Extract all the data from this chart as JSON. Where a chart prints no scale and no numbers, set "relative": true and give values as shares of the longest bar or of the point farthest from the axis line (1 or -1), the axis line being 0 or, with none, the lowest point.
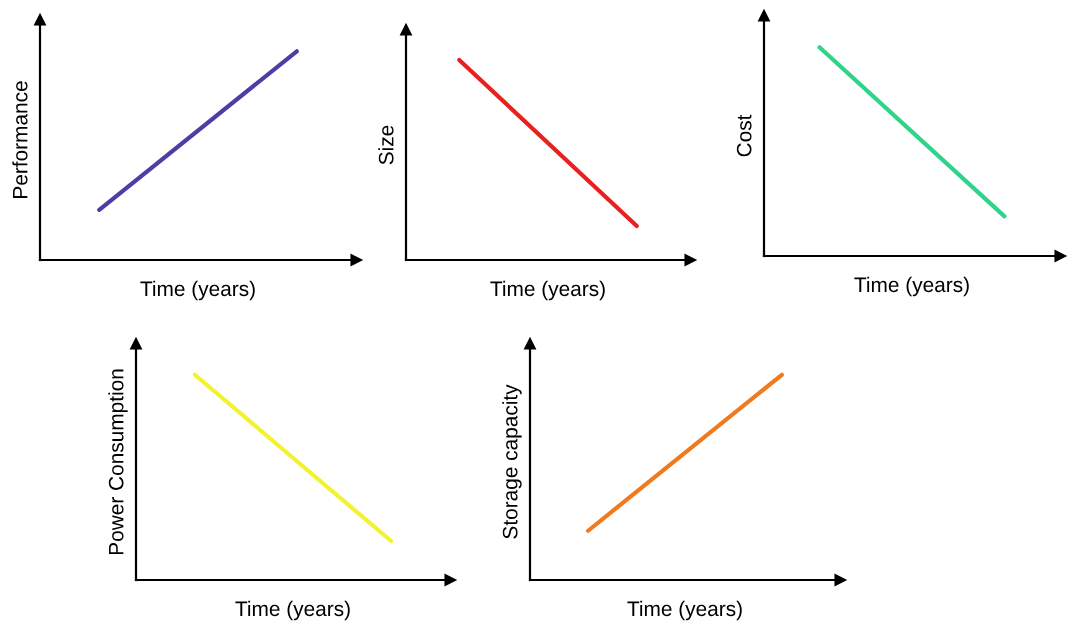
{
  "chart_data": [
    {
      "type": "line",
      "relative": true,
      "xlabel": "Time (years)",
      "ylabel": "Performance",
      "categories": [
        null,
        null
      ],
      "series": [
        {
          "color": "#4b3fa6",
          "values": [
            0.24,
            1
          ]
        }
      ]
    },
    {
      "type": "line",
      "relative": true,
      "xlabel": "Time (years)",
      "ylabel": "Size",
      "categories": [
        null,
        null
      ],
      "series": [
        {
          "color": "#e8201e",
          "values": [
            1,
            0.17
          ]
        }
      ]
    },
    {
      "type": "line",
      "relative": true,
      "xlabel": "Time (years)",
      "ylabel": "Cost",
      "categories": [
        null,
        null
      ],
      "series": [
        {
          "color": "#2fd38a",
          "values": [
            1,
            0.19
          ]
        }
      ]
    },
    {
      "type": "line",
      "relative": true,
      "xlabel": "Time (years)",
      "ylabel": "Power Consumption",
      "categories": [
        null,
        null
      ],
      "series": [
        {
          "color": "#f2f230",
          "values": [
            1,
            0.19
          ]
        }
      ]
    },
    {
      "type": "line",
      "relative": true,
      "xlabel": "Time (years)",
      "ylabel": "Storage capacity",
      "categories": [
        null,
        null
      ],
      "series": [
        {
          "color": "#f07a20",
          "values": [
            0.24,
            1
          ]
        }
      ]
    }
  ]
}
